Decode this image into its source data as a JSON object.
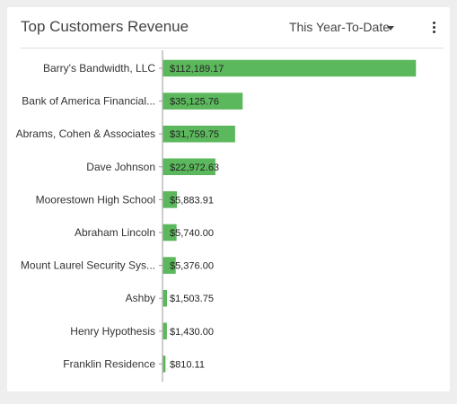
{
  "widget": {
    "title": "Top Customers Revenue",
    "period_label": "This Year-To-Date"
  },
  "icons": {
    "period_dropdown": "caret-down-icon",
    "menu": "kebab-menu-icon"
  },
  "colors": {
    "bar": "#5cb85c",
    "bar_border": "#4cae4c"
  },
  "chart_data": {
    "type": "bar",
    "orientation": "horizontal",
    "categories": [
      "Barry's Bandwidth, LLC",
      "Bank of America Financial...",
      "Abrams, Cohen & Associates",
      "Dave Johnson",
      "Moorestown High School",
      "Abraham Lincoln",
      "Mount Laurel Security Sys...",
      "Ashby",
      "Henry Hypothesis",
      "Franklin Residence"
    ],
    "values": [
      112189.17,
      35125.76,
      31759.75,
      22972.63,
      5883.91,
      5740.0,
      5376.0,
      1503.75,
      1430.0,
      810.11
    ],
    "value_labels": [
      "$112,189.17",
      "$35,125.76",
      "$31,759.75",
      "$22,972.63",
      "$5,883.91",
      "$5,740.00",
      "$5,376.00",
      "$1,503.75",
      "$1,430.00",
      "$810.11"
    ],
    "title": "",
    "xlabel": "",
    "ylabel": "",
    "grid": false,
    "legend": "none"
  }
}
